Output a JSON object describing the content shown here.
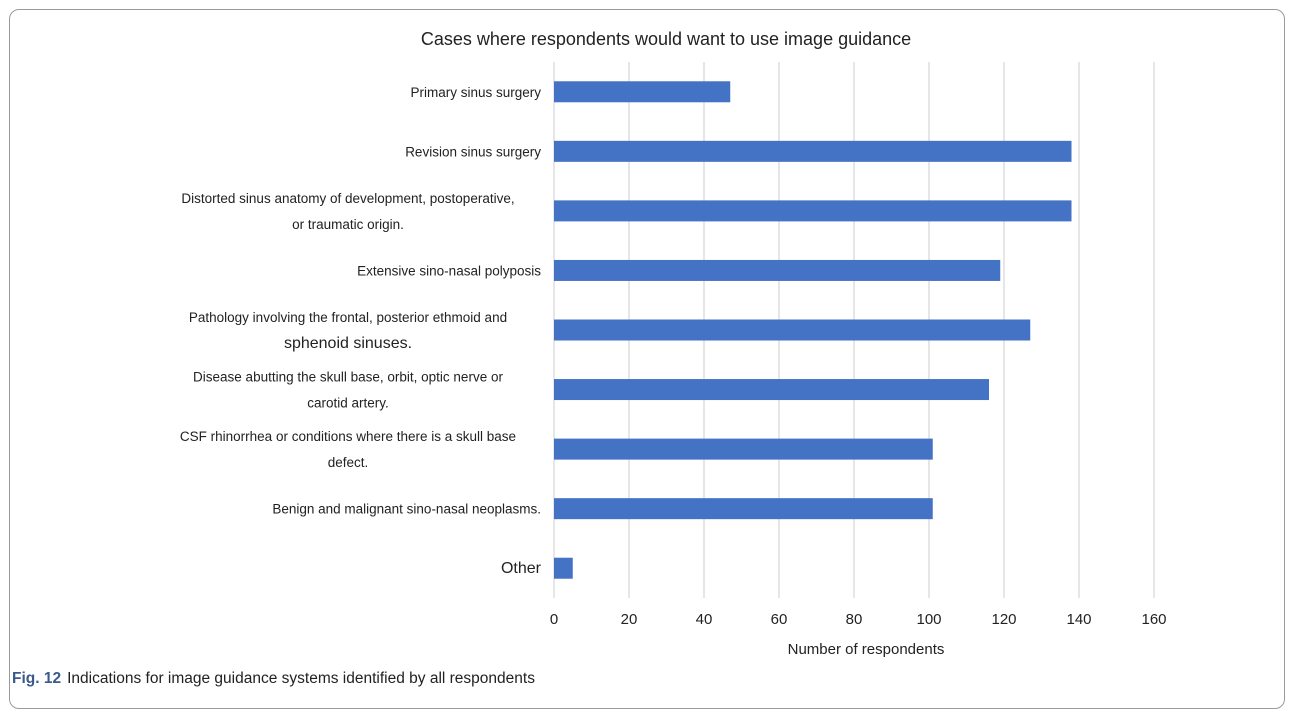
{
  "chart_data": {
    "type": "bar",
    "orientation": "horizontal",
    "title": "Cases where respondents would want to use image guidance",
    "xlabel": "Number of respondents",
    "ylabel": "",
    "xlim": [
      0,
      160
    ],
    "xticks": [
      0,
      20,
      40,
      60,
      80,
      100,
      120,
      140,
      160
    ],
    "grid": "vertical",
    "legend": "none",
    "bar_color": "#4472C4",
    "categories": [
      [
        "Primary sinus surgery"
      ],
      [
        "Revision sinus surgery"
      ],
      [
        "Distorted sinus anatomy of development, postoperative,",
        "or traumatic origin."
      ],
      [
        "Extensive sino-nasal polyposis"
      ],
      [
        "Pathology involving the frontal, posterior ethmoid and",
        "sphenoid sinuses."
      ],
      [
        "Disease abutting the skull base, orbit, optic nerve or",
        "carotid artery."
      ],
      [
        "CSF rhinorrhea or conditions where there is a skull base",
        "defect."
      ],
      [
        "Benign and malignant sino-nasal neoplasms."
      ],
      [
        "Other"
      ]
    ],
    "values": [
      47,
      138,
      138,
      119,
      127,
      116,
      101,
      101,
      5
    ]
  },
  "caption": {
    "label": "Fig. 12",
    "text": "Indications for image guidance systems identified by all respondents"
  }
}
